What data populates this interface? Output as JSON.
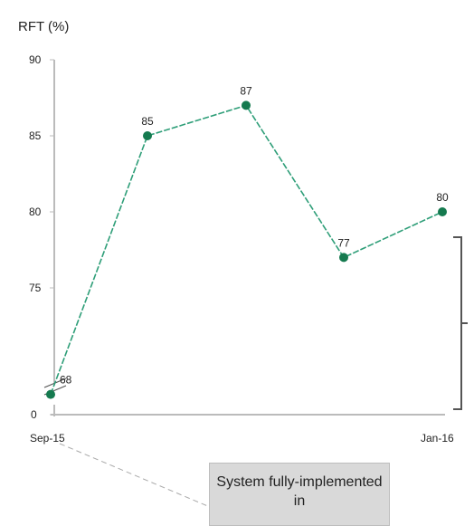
{
  "chart_data": {
    "type": "line",
    "ylabel": "RFT (%)",
    "x": [
      "Sep-15",
      "",
      "",
      "",
      "Jan-16"
    ],
    "series": [
      {
        "values": [
          68,
          85,
          87,
          77,
          80
        ],
        "data_labels": [
          "68",
          "85",
          "87",
          "77",
          "80"
        ]
      }
    ],
    "yticks": [
      "0",
      "75",
      "80",
      "85",
      "90"
    ],
    "axis_break": true,
    "grid": false,
    "line_color": "#2e9e78",
    "marker_color": "#157a4f",
    "callout": "System fully-implemented in"
  }
}
